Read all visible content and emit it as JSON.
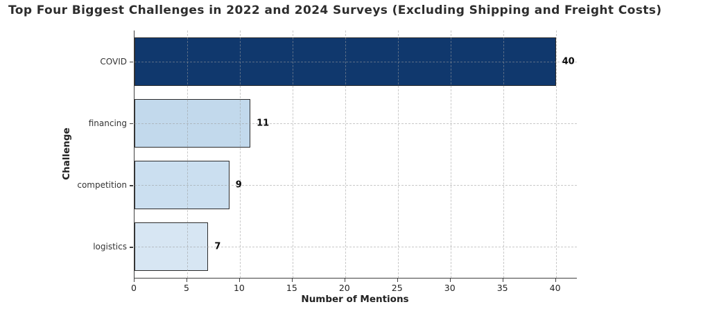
{
  "chart_data": {
    "type": "bar",
    "orientation": "horizontal",
    "title": "Top Four Biggest Challenges in 2022 and 2024 Surveys (Excluding Shipping and Freight Costs)",
    "xlabel": "Number of Mentions",
    "ylabel": "Challenge",
    "categories": [
      "COVID",
      "financing",
      "competition",
      "logistics"
    ],
    "values": [
      40,
      11,
      9,
      7
    ],
    "value_labels": [
      "40",
      "11",
      "9",
      "7"
    ],
    "bar_colors": [
      "#10386d",
      "#c2d9ec",
      "#cbdff0",
      "#d7e6f3"
    ],
    "bar_edge_color": "#2b2b2b",
    "xlim": [
      0,
      42
    ],
    "xticks": [
      0,
      5,
      10,
      15,
      20,
      25,
      30,
      35,
      40
    ],
    "grid": true,
    "grid_style": "dashed",
    "legend": "none",
    "colors": {
      "title_text": "#2d2d2d",
      "axis_spine": "#3f3f3f",
      "tick_text": "#222222",
      "gridline": "#9b9b9b"
    }
  }
}
